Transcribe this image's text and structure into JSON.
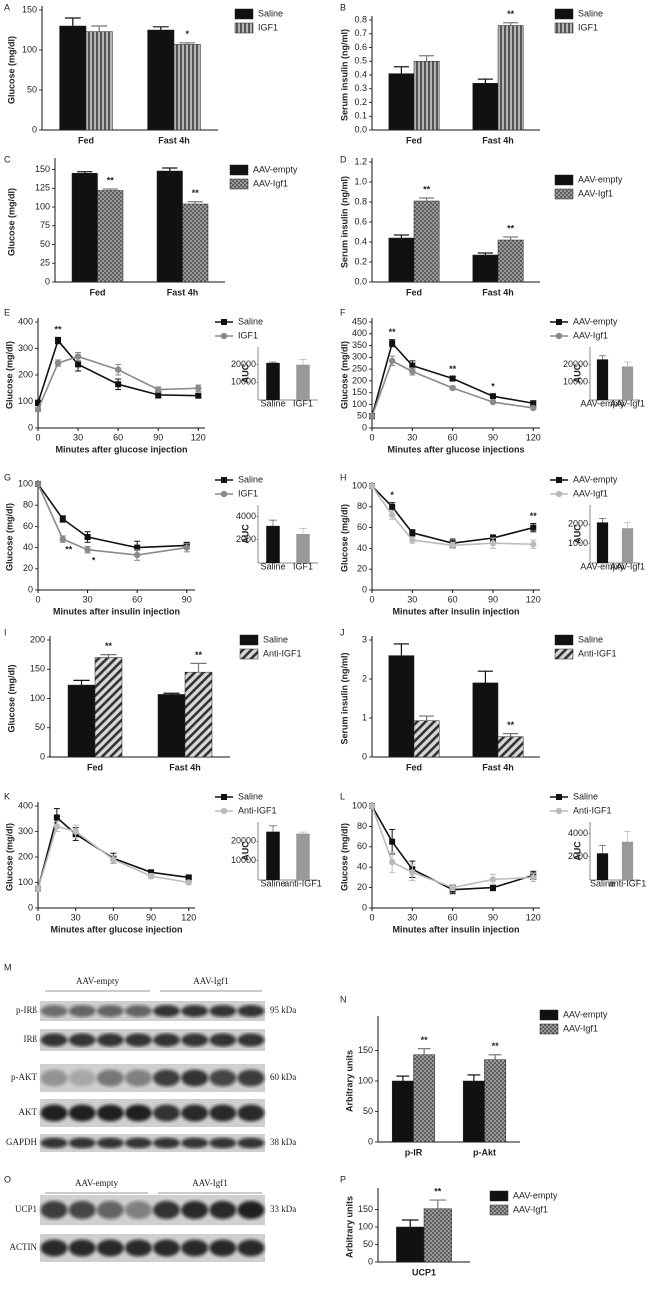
{
  "chart_data": [
    {
      "type": "bar",
      "panel": "A",
      "ylabel": "Glucose (mg/dl)",
      "categories": [
        "Fed",
        "Fast 4h"
      ],
      "series": [
        {
          "name": "Saline",
          "color": "#111111",
          "pattern": "solid",
          "values": [
            130,
            125
          ],
          "errors": [
            10,
            4
          ]
        },
        {
          "name": "IGF1",
          "color": "#8a8a8a",
          "pattern": "vertical-lines",
          "values": [
            123,
            107
          ],
          "errors": [
            7,
            2
          ],
          "significance": [
            null,
            "*"
          ]
        }
      ],
      "ylim": [
        0,
        150
      ],
      "yticks": [
        0,
        50,
        100,
        150
      ]
    },
    {
      "type": "bar",
      "panel": "B",
      "ylabel": "Serum insulin (ng/ml)",
      "categories": [
        "Fed",
        "Fast 4h"
      ],
      "series": [
        {
          "name": "Saline",
          "color": "#111111",
          "pattern": "solid",
          "values": [
            0.41,
            0.34
          ],
          "errors": [
            0.05,
            0.03
          ]
        },
        {
          "name": "IGF1",
          "color": "#8a8a8a",
          "pattern": "vertical-lines",
          "values": [
            0.5,
            0.76
          ],
          "errors": [
            0.04,
            0.02
          ],
          "significance": [
            null,
            "**"
          ]
        }
      ],
      "ylim": [
        0,
        0.8
      ],
      "yticks": [
        {
          "value": 0,
          "label": "0.0"
        },
        0.1,
        0.2,
        0.3,
        0.4,
        0.5,
        0.6,
        0.7,
        0.8
      ]
    },
    {
      "type": "bar",
      "panel": "C",
      "ylabel": "Glucose (mg/dl)",
      "categories": [
        "Fed",
        "Fast 4h"
      ],
      "series": [
        {
          "name": "AAV-empty",
          "color": "#111111",
          "pattern": "solid",
          "values": [
            145,
            148
          ],
          "errors": [
            2,
            4
          ]
        },
        {
          "name": "AAV-Igf1",
          "color": "#8a8a8a",
          "pattern": "dots",
          "values": [
            122,
            104
          ],
          "errors": [
            2,
            3
          ],
          "significance": [
            "**",
            "**"
          ]
        }
      ],
      "ylim": [
        0,
        160
      ],
      "yticks": [
        0,
        25,
        50,
        75,
        100,
        125,
        150
      ]
    },
    {
      "type": "bar",
      "panel": "D",
      "ylabel": "Serum insulin (ng/ml)",
      "categories": [
        "Fed",
        "Fast 4h"
      ],
      "series": [
        {
          "name": "AAV-empty",
          "color": "#111111",
          "pattern": "solid",
          "values": [
            0.44,
            0.27
          ],
          "errors": [
            0.03,
            0.02
          ]
        },
        {
          "name": "AAV-Igf1",
          "color": "#8a8a8a",
          "pattern": "dots",
          "values": [
            0.81,
            0.42
          ],
          "errors": [
            0.03,
            0.03
          ],
          "significance": [
            "**",
            "**"
          ]
        }
      ],
      "ylim": [
        0,
        1.2
      ],
      "yticks": [
        {
          "value": 0,
          "label": "0.0"
        },
        0.2,
        0.4,
        0.6,
        0.8,
        {
          "value": 1,
          "label": "1.0"
        },
        1.2
      ]
    },
    {
      "type": "line",
      "panel": "E",
      "ylabel": "Glucose (mg/dl)",
      "xlabel": "Minutes after glucose injection",
      "x": [
        0,
        15,
        30,
        60,
        90,
        120
      ],
      "series": [
        {
          "name": "Saline",
          "color": "#111111",
          "marker": "square",
          "values": [
            95,
            330,
            240,
            165,
            125,
            122
          ],
          "errors": [
            10,
            12,
            25,
            20,
            12,
            8
          ],
          "significance": [
            null,
            "**",
            null,
            null,
            null,
            null
          ]
        },
        {
          "name": "IGF1",
          "color": "#8a8a8a",
          "marker": "circle",
          "values": [
            70,
            245,
            270,
            220,
            145,
            150
          ],
          "errors": [
            8,
            12,
            15,
            20,
            10,
            12
          ]
        }
      ],
      "xlim": [
        0,
        125
      ],
      "xticks": [
        0,
        30,
        60,
        90,
        120
      ],
      "ylim": [
        0,
        400
      ],
      "yticks": [
        0,
        100,
        200,
        300,
        400
      ]
    },
    {
      "type": "line",
      "panel": "F",
      "ylabel": "Glucose (mg/dl)",
      "xlabel": "Minutes after glucose injections",
      "x": [
        0,
        15,
        30,
        60,
        90,
        120
      ],
      "series": [
        {
          "name": "AAV-empty",
          "color": "#111111",
          "marker": "square",
          "values": [
            50,
            360,
            265,
            210,
            135,
            105
          ],
          "errors": [
            5,
            15,
            20,
            8,
            8,
            10
          ],
          "significance": [
            null,
            "**",
            null,
            "**",
            "*",
            null
          ]
        },
        {
          "name": "AAV-Igf1",
          "color": "#8a8a8a",
          "marker": "circle",
          "values": [
            50,
            285,
            240,
            170,
            110,
            85
          ],
          "errors": [
            5,
            20,
            15,
            8,
            5,
            5
          ]
        }
      ],
      "xlim": [
        0,
        125
      ],
      "xticks": [
        0,
        30,
        60,
        90,
        120
      ],
      "ylim": [
        0,
        450
      ],
      "yticks": [
        0,
        50,
        100,
        150,
        200,
        250,
        300,
        350,
        400,
        450
      ]
    },
    {
      "type": "line",
      "panel": "G",
      "ylabel": "Glucose (mg/dl)",
      "xlabel": "Minutes after insulin injection",
      "x": [
        0,
        15,
        30,
        60,
        90
      ],
      "series": [
        {
          "name": "Saline",
          "color": "#111111",
          "marker": "square",
          "values": [
            100,
            67,
            50,
            40,
            42
          ],
          "errors": [
            2,
            3,
            5,
            6,
            3
          ]
        },
        {
          "name": "IGF1",
          "color": "#8a8a8a",
          "marker": "circle",
          "values": [
            100,
            48,
            38,
            33,
            40
          ],
          "errors": [
            2,
            3,
            3,
            5,
            4
          ],
          "significance": [
            null,
            "**",
            "*",
            null,
            null
          ]
        }
      ],
      "xlim": [
        0,
        95
      ],
      "xticks": [
        0,
        30,
        60,
        90
      ],
      "ylim": [
        0,
        100
      ],
      "yticks": [
        0,
        20,
        40,
        60,
        80,
        100
      ]
    },
    {
      "type": "line",
      "panel": "H",
      "ylabel": "Glucose (mg/dl)",
      "xlabel": "Minutes after insulin injection",
      "x": [
        0,
        15,
        30,
        60,
        90,
        120
      ],
      "series": [
        {
          "name": "AAV-empty",
          "color": "#111111",
          "marker": "square",
          "values": [
            100,
            80,
            55,
            45,
            50,
            60
          ],
          "errors": [
            2,
            4,
            3,
            4,
            3,
            4
          ],
          "significance": [
            null,
            "*",
            null,
            null,
            null,
            "**"
          ]
        },
        {
          "name": "AAV-Igf1",
          "color": "#bbbbbb",
          "marker": "circle",
          "values": [
            100,
            72,
            48,
            43,
            45,
            44
          ],
          "errors": [
            2,
            4,
            3,
            3,
            5,
            4
          ]
        }
      ],
      "xlim": [
        0,
        125
      ],
      "xticks": [
        0,
        30,
        60,
        90,
        120
      ],
      "ylim": [
        0,
        100
      ],
      "yticks": [
        0,
        20,
        40,
        60,
        80,
        100
      ]
    },
    {
      "type": "bar",
      "panel": "I",
      "ylabel": "Glucose (mg/dl)",
      "categories": [
        "Fed",
        "Fast 4h"
      ],
      "series": [
        {
          "name": "Saline",
          "color": "#111111",
          "pattern": "solid",
          "values": [
            123,
            107
          ],
          "errors": [
            8,
            2
          ]
        },
        {
          "name": "Anti-IGF1",
          "color": "#8a8a8a",
          "pattern": "hatch",
          "values": [
            170,
            145
          ],
          "errors": [
            5,
            15
          ],
          "significance": [
            "**",
            "**"
          ]
        }
      ],
      "ylim": [
        0,
        200
      ],
      "yticks": [
        0,
        50,
        100,
        150,
        200
      ]
    },
    {
      "type": "bar",
      "panel": "J",
      "ylabel": "Serum insulin (ng/ml)",
      "categories": [
        "Fed",
        "Fast 4h"
      ],
      "series": [
        {
          "name": "Saline",
          "color": "#111111",
          "pattern": "solid",
          "values": [
            2.6,
            1.9
          ],
          "errors": [
            0.3,
            0.3
          ]
        },
        {
          "name": "Anti-IGF1",
          "color": "#8a8a8a",
          "pattern": "hatch",
          "values": [
            0.93,
            0.52
          ],
          "errors": [
            0.12,
            0.08
          ],
          "significance": [
            null,
            "**"
          ]
        }
      ],
      "ylim": [
        0,
        3
      ],
      "yticks": [
        0,
        1,
        2,
        3
      ]
    },
    {
      "type": "line",
      "panel": "K",
      "ylabel": "Glucose (mg/dl)",
      "xlabel": "Minutes after glucose injection",
      "x": [
        0,
        15,
        30,
        60,
        90,
        120
      ],
      "series": [
        {
          "name": "Saline",
          "color": "#111111",
          "marker": "square",
          "values": [
            75,
            355,
            290,
            195,
            140,
            120
          ],
          "errors": [
            10,
            35,
            25,
            20,
            8,
            5
          ]
        },
        {
          "name": "Anti-IGF1",
          "color": "#bbbbbb",
          "marker": "circle",
          "values": [
            75,
            320,
            300,
            190,
            125,
            100
          ],
          "errors": [
            10,
            20,
            25,
            15,
            10,
            5
          ]
        }
      ],
      "xlim": [
        0,
        125
      ],
      "xticks": [
        0,
        30,
        60,
        90,
        120
      ],
      "ylim": [
        0,
        400
      ],
      "yticks": [
        0,
        100,
        200,
        300,
        400
      ]
    },
    {
      "type": "line",
      "panel": "L",
      "ylabel": "Glucose (mg/dl)",
      "xlabel": "Minutes after insulin injection",
      "x": [
        0,
        15,
        30,
        60,
        90,
        120
      ],
      "series": [
        {
          "name": "Saline",
          "color": "#111111",
          "marker": "square",
          "values": [
            100,
            65,
            38,
            18,
            20,
            32
          ],
          "errors": [
            2,
            12,
            8,
            4,
            3,
            4
          ]
        },
        {
          "name": "Anti-IGF1",
          "color": "#bbbbbb",
          "marker": "circle",
          "values": [
            100,
            45,
            35,
            20,
            28,
            30
          ],
          "errors": [
            2,
            10,
            8,
            3,
            5,
            4
          ]
        }
      ],
      "xlim": [
        0,
        125
      ],
      "xticks": [
        0,
        30,
        60,
        90,
        120
      ],
      "ylim": [
        0,
        100
      ],
      "yticks": [
        0,
        20,
        40,
        60,
        80,
        100
      ]
    },
    {
      "type": "bar",
      "panel": "N",
      "ylabel": "Arbitrary units",
      "categories": [
        "p-IR",
        "p-Akt"
      ],
      "series": [
        {
          "name": "AAV-empty",
          "color": "#111111",
          "pattern": "solid",
          "values": [
            100,
            100
          ],
          "errors": [
            8,
            10
          ]
        },
        {
          "name": "AAV-Igf1",
          "color": "#8a8a8a",
          "pattern": "dots",
          "values": [
            143,
            135
          ],
          "errors": [
            10,
            8
          ],
          "significance": [
            "**",
            "**"
          ]
        }
      ],
      "ylim": [
        0,
        200
      ],
      "yticks": [
        0,
        50,
        100,
        150
      ]
    },
    {
      "type": "bar",
      "panel": "P",
      "ylabel": "Arbitrary units",
      "categories": [
        "UCP1"
      ],
      "series": [
        {
          "name": "AAV-empty",
          "color": "#111111",
          "pattern": "solid",
          "values": [
            100
          ],
          "errors": [
            20
          ]
        },
        {
          "name": "AAV-Igf1",
          "color": "#8a8a8a",
          "pattern": "dots",
          "values": [
            152
          ],
          "errors": [
            25
          ],
          "significance": [
            "**"
          ]
        }
      ],
      "ylim": [
        0,
        200
      ],
      "yticks": [
        0,
        50,
        100,
        150
      ]
    },
    {
      "type": "bar",
      "ylabel": "AUC",
      "categories": [
        "Saline",
        "IGF1"
      ],
      "colors": [
        "#111111",
        "#999999"
      ],
      "series": [
        {
          "values": [
            21000,
            20000
          ],
          "errors": [
            500,
            3000
          ]
        }
      ],
      "ylim": [
        0,
        30000
      ],
      "yticks": [
        10000,
        20000
      ]
    },
    {
      "type": "bar",
      "ylabel": "AUC",
      "categories": [
        "AAV-empty",
        "AAV-Igf1"
      ],
      "colors": [
        "#111111",
        "#999999"
      ],
      "series": [
        {
          "values": [
            23000,
            19000
          ],
          "errors": [
            2000,
            2500
          ]
        }
      ],
      "ylim": [
        0,
        30000
      ],
      "yticks": [
        10000,
        20000
      ]
    },
    {
      "type": "bar",
      "ylabel": "AUC",
      "categories": [
        "Saline",
        "IGF1"
      ],
      "colors": [
        "#111111",
        "#999999"
      ],
      "series": [
        {
          "values": [
            3200,
            2500
          ],
          "errors": [
            500,
            500
          ]
        }
      ],
      "ylim": [
        0,
        5000
      ],
      "yticks": [
        2000,
        4000
      ]
    },
    {
      "type": "bar",
      "ylabel": "AUC",
      "categories": [
        "AAV-empty",
        "AAV-Igf1"
      ],
      "colors": [
        "#111111",
        "#999999"
      ],
      "series": [
        {
          "values": [
            2100,
            1800
          ],
          "errors": [
            200,
            300
          ]
        }
      ],
      "ylim": [
        0,
        3000
      ],
      "yticks": [
        1000,
        2000
      ]
    },
    {
      "type": "bar",
      "ylabel": "AUC",
      "categories": [
        "Saline",
        "anti-IGF1"
      ],
      "colors": [
        "#111111",
        "#999999"
      ],
      "series": [
        {
          "values": [
            25000,
            24000
          ],
          "errors": [
            3000,
            800
          ]
        }
      ],
      "ylim": [
        0,
        30000
      ],
      "yticks": [
        10000,
        20000
      ]
    },
    {
      "type": "bar",
      "ylabel": "AUC",
      "categories": [
        "Saline",
        "anti-IGF1"
      ],
      "colors": [
        "#111111",
        "#999999"
      ],
      "series": [
        {
          "values": [
            2300,
            3300
          ],
          "errors": [
            700,
            900
          ]
        }
      ],
      "ylim": [
        0,
        5000
      ],
      "yticks": [
        2000,
        4000
      ]
    }
  ],
  "blots": [
    {
      "panel": "M",
      "groups": [
        "AAV-empty",
        "AAV-Igf1"
      ],
      "rows": [
        {
          "label": "p-IRß",
          "size": "95 kDa"
        },
        {
          "label": "IRß"
        },
        {
          "label": "p-AKT",
          "size": "60 kDa"
        },
        {
          "label": "AKT"
        },
        {
          "label": "GAPDH",
          "size": "38 kDa"
        }
      ]
    },
    {
      "panel": "O",
      "groups": [
        "AAV-empty",
        "AAV-Igf1"
      ],
      "rows": [
        {
          "label": "UCP1",
          "size": "33 kDa"
        },
        {
          "label": "ACTIN"
        }
      ]
    }
  ]
}
